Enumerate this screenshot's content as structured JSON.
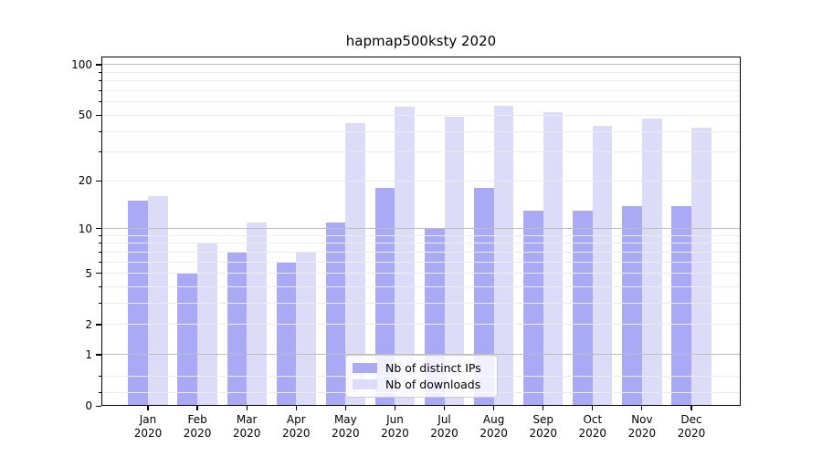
{
  "title": "hapmap500ksty 2020",
  "chart_data": {
    "type": "bar",
    "title": "hapmap500ksty 2020",
    "categories": [
      "Jan 2020",
      "Feb 2020",
      "Mar 2020",
      "Apr 2020",
      "May 2020",
      "Jun 2020",
      "Jul 2020",
      "Aug 2020",
      "Sep 2020",
      "Oct 2020",
      "Nov 2020",
      "Dec 2020"
    ],
    "series": [
      {
        "name": "Nb of distinct IPs",
        "color": "#a9a9f6",
        "values": [
          15,
          5,
          7,
          6,
          11,
          18,
          10,
          18,
          13,
          13,
          14,
          14
        ]
      },
      {
        "name": "Nb of downloads",
        "color": "#dcdcf9",
        "values": [
          16,
          8,
          11,
          7,
          45,
          56,
          49,
          57,
          52,
          43,
          48,
          42
        ]
      }
    ],
    "xlabel": "",
    "ylabel": "",
    "yscale": "log1p",
    "ylim": [
      0,
      112
    ],
    "yticks": [
      100,
      50,
      20,
      10,
      5,
      2,
      1,
      0
    ],
    "grid": "on",
    "legend_position": "lower center"
  },
  "colors": {
    "bar_distinct_ips": "#a9a9f6",
    "bar_downloads": "#dcdcf9",
    "grid_major": "#bdbdbd",
    "grid_minor": "#ececec",
    "axis": "#000000",
    "background": "#ffffff"
  }
}
